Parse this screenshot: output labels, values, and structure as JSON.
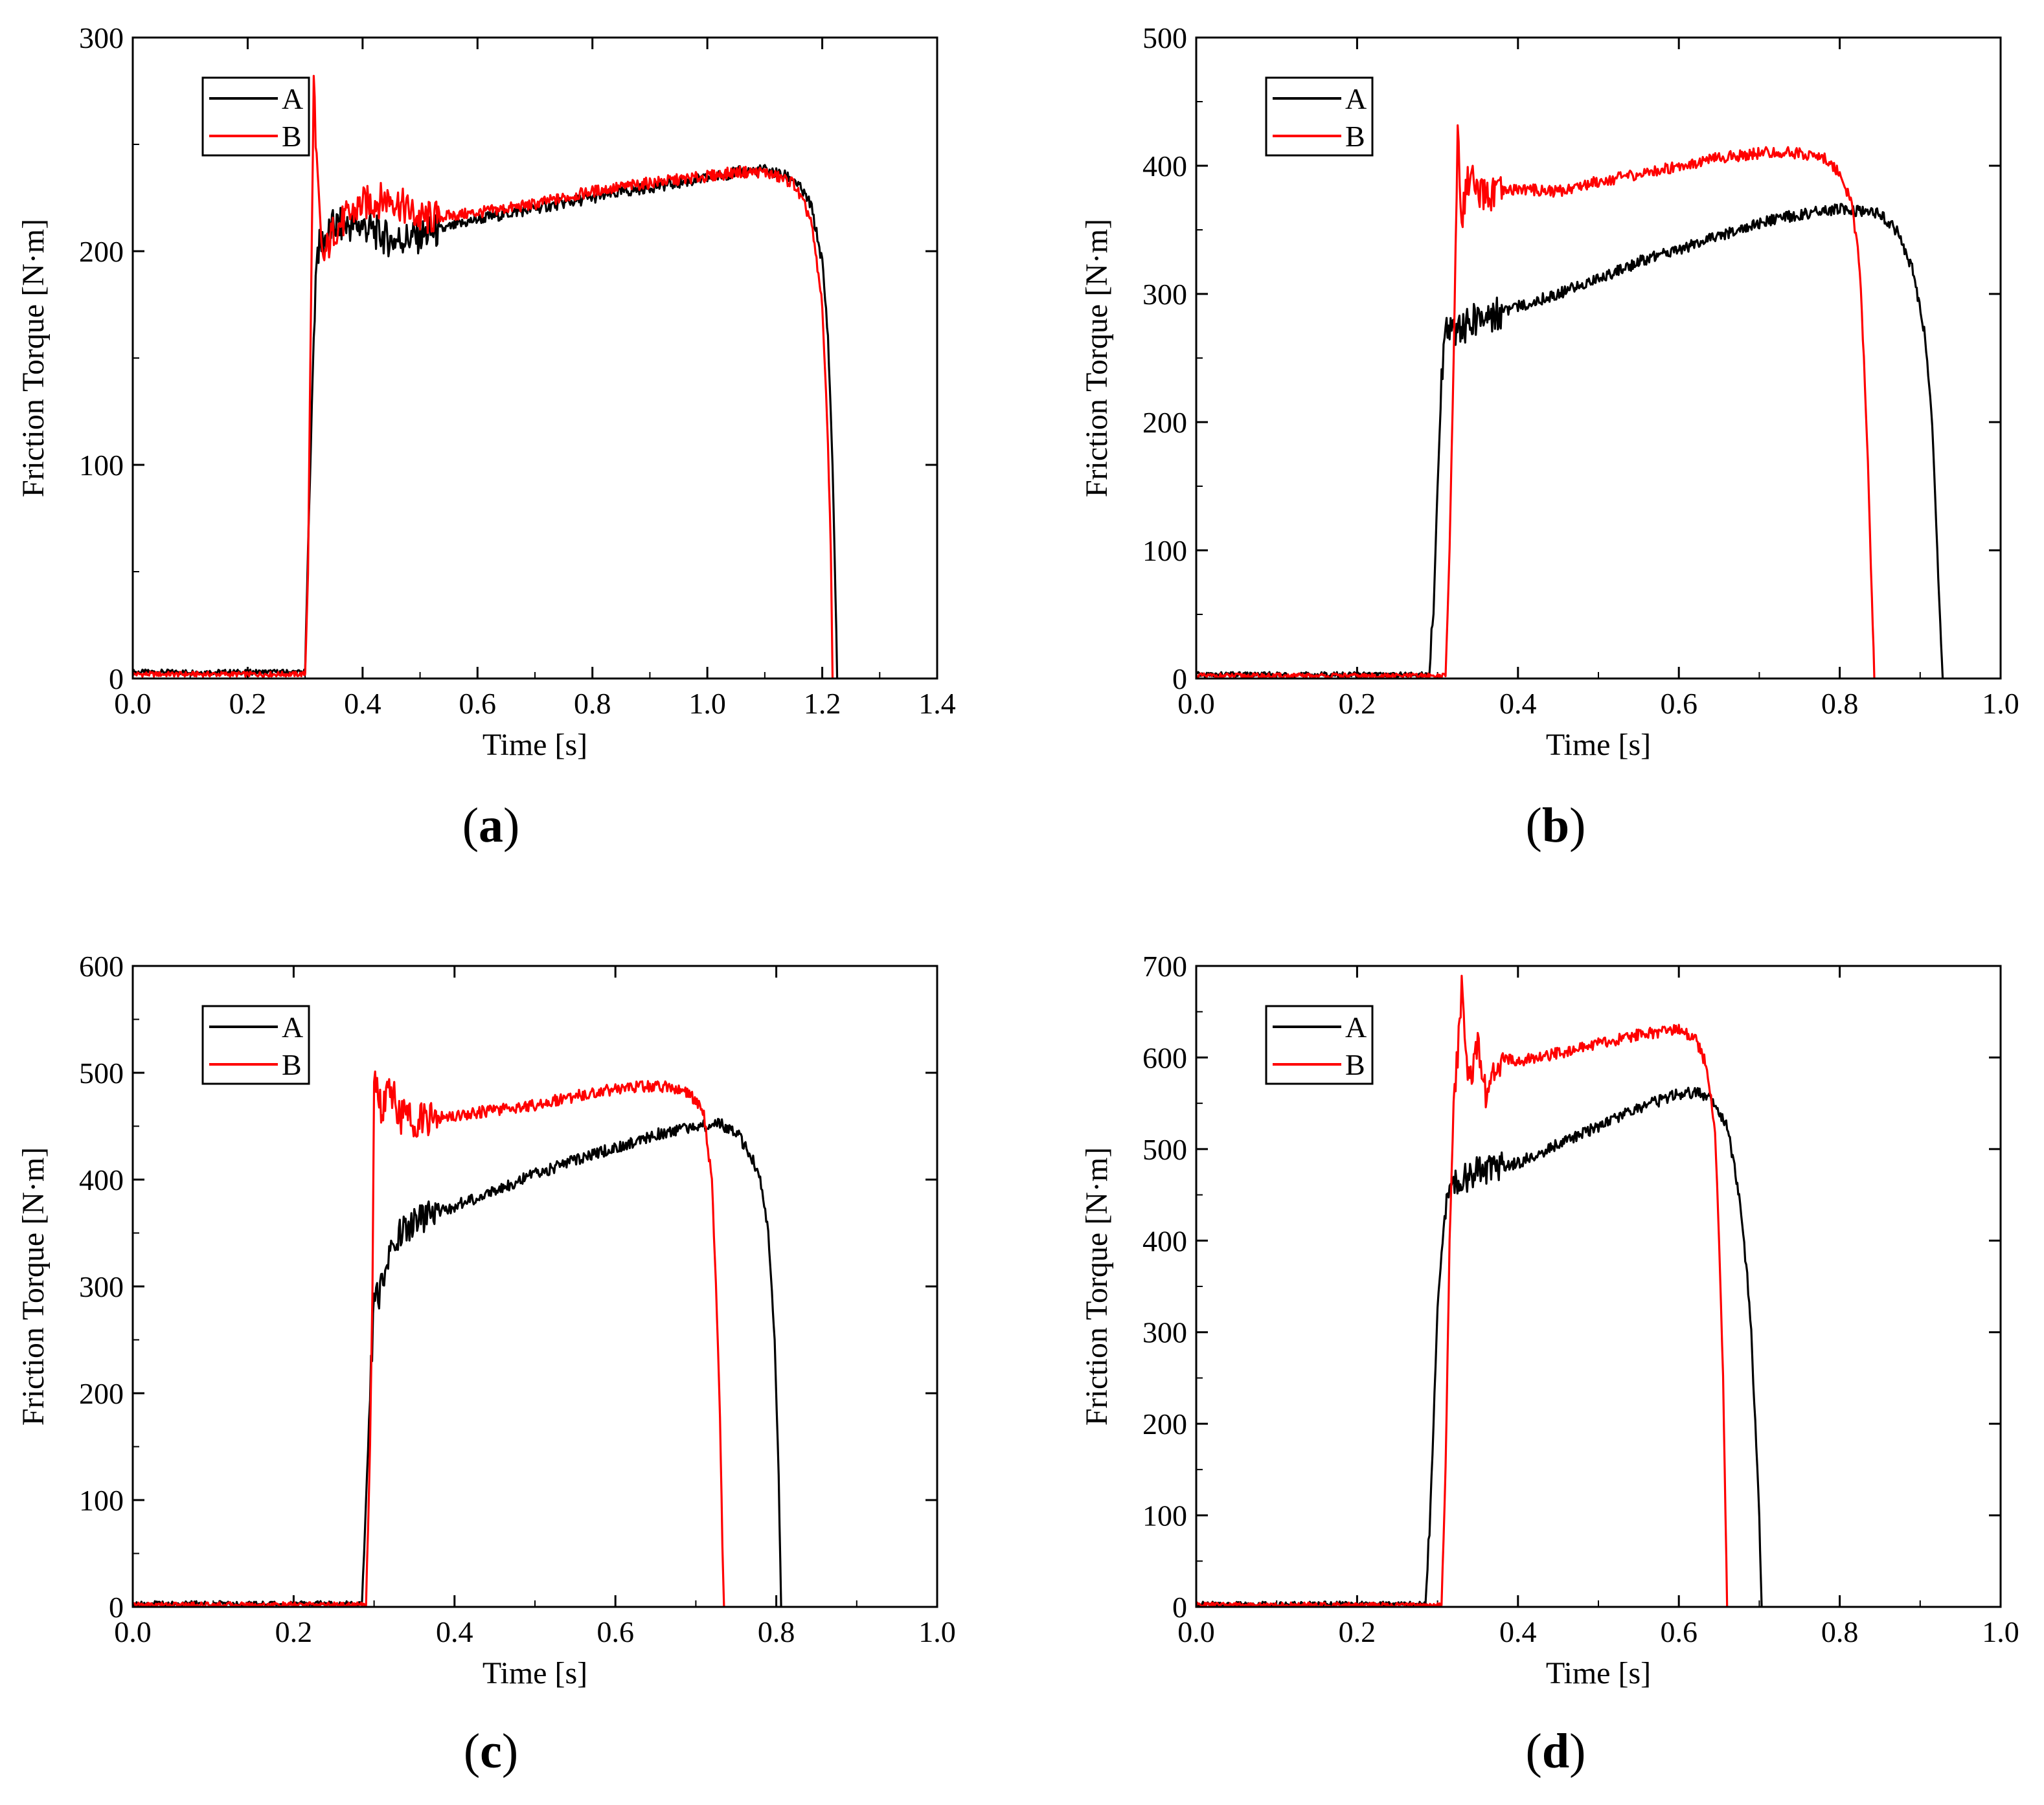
{
  "chart_data": [
    {
      "panel_label": "a",
      "type": "line",
      "xlabel": "Time [s]",
      "ylabel": "Friction Torque [N·m]",
      "xlim": [
        0,
        1.4
      ],
      "ylim": [
        0,
        300
      ],
      "xticks": [
        "0.0",
        "0.2",
        "0.4",
        "0.6",
        "0.8",
        "1.0",
        "1.2",
        "1.4"
      ],
      "yticks": [
        "0",
        "100",
        "200",
        "300"
      ],
      "legend": "top-left",
      "series": [
        {
          "name": "A",
          "color": "#000000",
          "points": [
            [
              0,
              3
            ],
            [
              0.3,
              3
            ],
            [
              0.305,
              60
            ],
            [
              0.31,
              110
            ],
            [
              0.315,
              160
            ],
            [
              0.32,
              200
            ],
            [
              0.35,
              212
            ],
            [
              0.4,
              212
            ],
            [
              0.45,
              205
            ],
            [
              0.5,
              207
            ],
            [
              0.6,
              215
            ],
            [
              0.7,
              220
            ],
            [
              0.8,
              225
            ],
            [
              0.9,
              230
            ],
            [
              1.0,
              234
            ],
            [
              1.05,
              237
            ],
            [
              1.1,
              238
            ],
            [
              1.15,
              234
            ],
            [
              1.18,
              222
            ],
            [
              1.2,
              195
            ],
            [
              1.21,
              160
            ],
            [
              1.218,
              100
            ],
            [
              1.223,
              40
            ],
            [
              1.226,
              0
            ]
          ]
        },
        {
          "name": "B",
          "color": "#ff0000",
          "points": [
            [
              0,
              2
            ],
            [
              0.3,
              2
            ],
            [
              0.305,
              50
            ],
            [
              0.31,
              170
            ],
            [
              0.315,
              280
            ],
            [
              0.32,
              245
            ],
            [
              0.33,
              195
            ],
            [
              0.35,
              210
            ],
            [
              0.4,
              222
            ],
            [
              0.45,
              225
            ],
            [
              0.5,
              215
            ],
            [
              0.6,
              218
            ],
            [
              0.7,
              222
            ],
            [
              0.8,
              228
            ],
            [
              0.9,
              232
            ],
            [
              1.0,
              235
            ],
            [
              1.05,
              237
            ],
            [
              1.1,
              237
            ],
            [
              1.15,
              232
            ],
            [
              1.18,
              215
            ],
            [
              1.2,
              175
            ],
            [
              1.21,
              110
            ],
            [
              1.215,
              60
            ],
            [
              1.218,
              0
            ]
          ]
        }
      ]
    },
    {
      "panel_label": "b",
      "type": "line",
      "xlabel": "Time [s]",
      "ylabel": "Friction Torque [N·m]",
      "xlim": [
        0,
        1.0
      ],
      "ylim": [
        0,
        500
      ],
      "xticks": [
        "0.0",
        "0.2",
        "0.4",
        "0.6",
        "0.8",
        "1.0"
      ],
      "yticks": [
        "0",
        "100",
        "200",
        "300",
        "400",
        "500"
      ],
      "legend": "top-left",
      "series": [
        {
          "name": "A",
          "color": "#000000",
          "points": [
            [
              0,
              3
            ],
            [
              0.29,
              3
            ],
            [
              0.295,
              50
            ],
            [
              0.3,
              150
            ],
            [
              0.305,
              230
            ],
            [
              0.31,
              280
            ],
            [
              0.32,
              270
            ],
            [
              0.35,
              280
            ],
            [
              0.4,
              290
            ],
            [
              0.45,
              300
            ],
            [
              0.5,
              312
            ],
            [
              0.55,
              325
            ],
            [
              0.6,
              335
            ],
            [
              0.65,
              345
            ],
            [
              0.7,
              355
            ],
            [
              0.75,
              362
            ],
            [
              0.8,
              366
            ],
            [
              0.85,
              362
            ],
            [
              0.87,
              350
            ],
            [
              0.89,
              320
            ],
            [
              0.905,
              270
            ],
            [
              0.915,
              200
            ],
            [
              0.92,
              120
            ],
            [
              0.925,
              40
            ],
            [
              0.928,
              0
            ]
          ]
        },
        {
          "name": "B",
          "color": "#ff0000",
          "points": [
            [
              0,
              2
            ],
            [
              0.31,
              2
            ],
            [
              0.315,
              100
            ],
            [
              0.32,
              250
            ],
            [
              0.325,
              420
            ],
            [
              0.33,
              360
            ],
            [
              0.34,
              395
            ],
            [
              0.35,
              375
            ],
            [
              0.4,
              382
            ],
            [
              0.45,
              380
            ],
            [
              0.5,
              388
            ],
            [
              0.55,
              393
            ],
            [
              0.6,
              400
            ],
            [
              0.65,
              406
            ],
            [
              0.7,
              410
            ],
            [
              0.75,
              410
            ],
            [
              0.78,
              406
            ],
            [
              0.8,
              395
            ],
            [
              0.815,
              370
            ],
            [
              0.825,
              320
            ],
            [
              0.83,
              250
            ],
            [
              0.835,
              170
            ],
            [
              0.84,
              60
            ],
            [
              0.843,
              0
            ]
          ]
        }
      ]
    },
    {
      "panel_label": "c",
      "type": "line",
      "xlabel": "Time [s]",
      "ylabel": "Friction Torque [N·m]",
      "xlim": [
        0,
        1.0
      ],
      "ylim": [
        0,
        600
      ],
      "xticks": [
        "0.0",
        "0.2",
        "0.4",
        "0.6",
        "0.8",
        "1.0"
      ],
      "yticks": [
        "0",
        "100",
        "200",
        "300",
        "400",
        "500",
        "600"
      ],
      "legend": "top-left",
      "series": [
        {
          "name": "A",
          "color": "#000000",
          "points": [
            [
              0,
              3
            ],
            [
              0.285,
              3
            ],
            [
              0.29,
              100
            ],
            [
              0.295,
              200
            ],
            [
              0.3,
              280
            ],
            [
              0.31,
              300
            ],
            [
              0.32,
              340
            ],
            [
              0.35,
              360
            ],
            [
              0.4,
              375
            ],
            [
              0.45,
              390
            ],
            [
              0.5,
              405
            ],
            [
              0.55,
              418
            ],
            [
              0.6,
              430
            ],
            [
              0.65,
              442
            ],
            [
              0.7,
              450
            ],
            [
              0.73,
              452
            ],
            [
              0.75,
              445
            ],
            [
              0.77,
              420
            ],
            [
              0.78,
              400
            ],
            [
              0.79,
              350
            ],
            [
              0.798,
              250
            ],
            [
              0.803,
              120
            ],
            [
              0.806,
              0
            ]
          ]
        },
        {
          "name": "B",
          "color": "#ff0000",
          "points": [
            [
              0,
              2
            ],
            [
              0.29,
              2
            ],
            [
              0.295,
              150
            ],
            [
              0.298,
              300
            ],
            [
              0.3,
              500
            ],
            [
              0.31,
              460
            ],
            [
              0.32,
              490
            ],
            [
              0.33,
              460
            ],
            [
              0.36,
              455
            ],
            [
              0.4,
              460
            ],
            [
              0.45,
              465
            ],
            [
              0.5,
              470
            ],
            [
              0.55,
              478
            ],
            [
              0.6,
              485
            ],
            [
              0.65,
              488
            ],
            [
              0.68,
              485
            ],
            [
              0.7,
              475
            ],
            [
              0.71,
              460
            ],
            [
              0.72,
              400
            ],
            [
              0.725,
              300
            ],
            [
              0.73,
              180
            ],
            [
              0.733,
              60
            ],
            [
              0.735,
              0
            ]
          ]
        }
      ]
    },
    {
      "panel_label": "d",
      "type": "line",
      "xlabel": "Time [s]",
      "ylabel": "Friction Torque [N·m]",
      "xlim": [
        0,
        1.0
      ],
      "ylim": [
        0,
        700
      ],
      "xticks": [
        "0.0",
        "0.2",
        "0.4",
        "0.6",
        "0.8",
        "1.0"
      ],
      "yticks": [
        "0",
        "100",
        "200",
        "300",
        "400",
        "500",
        "600",
        "700"
      ],
      "legend": "top-left",
      "series": [
        {
          "name": "A",
          "color": "#000000",
          "points": [
            [
              0,
              3
            ],
            [
              0.285,
              3
            ],
            [
              0.29,
              80
            ],
            [
              0.295,
              200
            ],
            [
              0.3,
              330
            ],
            [
              0.31,
              440
            ],
            [
              0.32,
              460
            ],
            [
              0.35,
              475
            ],
            [
              0.4,
              485
            ],
            [
              0.45,
              505
            ],
            [
              0.5,
              525
            ],
            [
              0.55,
              545
            ],
            [
              0.6,
              560
            ],
            [
              0.62,
              562
            ],
            [
              0.64,
              555
            ],
            [
              0.66,
              525
            ],
            [
              0.675,
              450
            ],
            [
              0.685,
              360
            ],
            [
              0.69,
              300
            ],
            [
              0.695,
              200
            ],
            [
              0.7,
              100
            ],
            [
              0.703,
              0
            ]
          ]
        },
        {
          "name": "B",
          "color": "#ff0000",
          "points": [
            [
              0,
              2
            ],
            [
              0.305,
              2
            ],
            [
              0.31,
              150
            ],
            [
              0.315,
              400
            ],
            [
              0.32,
              550
            ],
            [
              0.325,
              600
            ],
            [
              0.33,
              670
            ],
            [
              0.34,
              570
            ],
            [
              0.35,
              610
            ],
            [
              0.36,
              560
            ],
            [
              0.38,
              600
            ],
            [
              0.4,
              595
            ],
            [
              0.45,
              605
            ],
            [
              0.5,
              615
            ],
            [
              0.55,
              625
            ],
            [
              0.6,
              630
            ],
            [
              0.62,
              622
            ],
            [
              0.635,
              590
            ],
            [
              0.645,
              520
            ],
            [
              0.65,
              400
            ],
            [
              0.655,
              250
            ],
            [
              0.658,
              100
            ],
            [
              0.66,
              0
            ]
          ]
        }
      ]
    }
  ]
}
